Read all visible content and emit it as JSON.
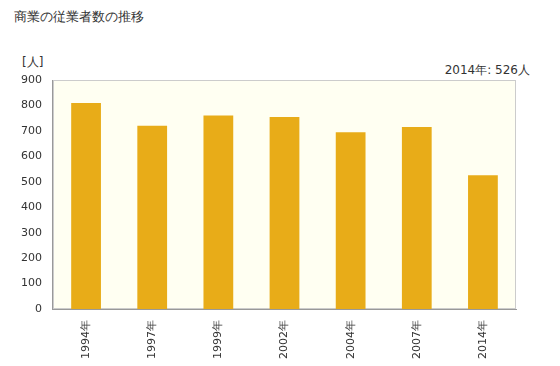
{
  "chart_data": {
    "type": "bar",
    "title": "商業の従業者数の推移",
    "y_label": "[人]",
    "annotation": "2014年: 526人",
    "categories": [
      "1994年",
      "1997年",
      "1999年",
      "2002年",
      "2004年",
      "2007年",
      "2014年"
    ],
    "values": [
      810,
      720,
      760,
      755,
      695,
      715,
      526
    ],
    "color": "#e8ac18",
    "ylim": [
      0,
      900
    ],
    "yticks": [
      0,
      100,
      200,
      300,
      400,
      500,
      600,
      700,
      800,
      900
    ],
    "grid": false
  }
}
